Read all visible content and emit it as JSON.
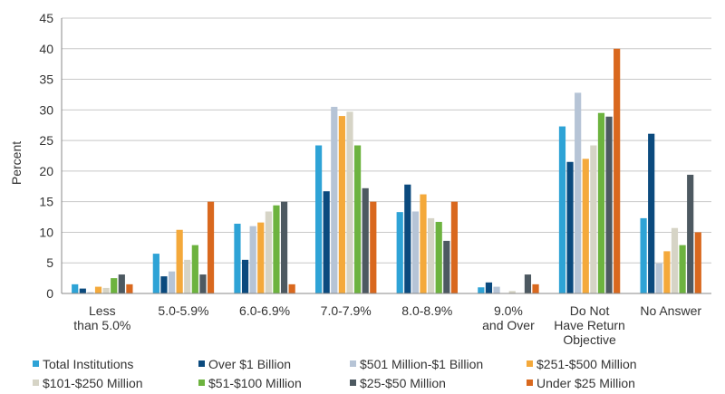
{
  "chart_data": {
    "type": "bar",
    "ylabel": "Percent",
    "ylim": [
      0,
      45
    ],
    "yticks": [
      0,
      5,
      10,
      15,
      20,
      25,
      30,
      35,
      40,
      45
    ],
    "grid": true,
    "legend_position": "bottom",
    "categories": [
      [
        "Less",
        "than 5.0%"
      ],
      [
        "5.0-5.9%"
      ],
      [
        "6.0-6.9%"
      ],
      [
        "7.0-7.9%"
      ],
      [
        "8.0-8.9%"
      ],
      [
        "9.0%",
        "and Over"
      ],
      [
        "Do Not",
        "Have Return",
        "Objective"
      ],
      [
        "No Answer"
      ]
    ],
    "series": [
      {
        "name": "Total Institutions",
        "color": "#2ea3d6",
        "values": [
          1.5,
          6.5,
          11.4,
          24.2,
          13.3,
          1.0,
          27.3,
          12.3
        ]
      },
      {
        "name": "Over $1 Billion",
        "color": "#0b4a7e",
        "values": [
          0.8,
          2.8,
          5.5,
          16.7,
          17.8,
          1.8,
          21.5,
          26.1
        ]
      },
      {
        "name": "$501 Million-$1 Billion",
        "color": "#b6c4d6",
        "values": [
          0.2,
          3.6,
          11.0,
          30.5,
          13.4,
          1.1,
          32.8,
          4.9
        ]
      },
      {
        "name": "$251-$500 Million",
        "color": "#f4a93b",
        "values": [
          1.1,
          10.4,
          11.6,
          29.0,
          16.2,
          0.0,
          22.0,
          6.9
        ]
      },
      {
        "name": "$101-$250 Million",
        "color": "#d6d4c6",
        "values": [
          0.9,
          5.5,
          13.4,
          29.7,
          12.3,
          0.4,
          24.2,
          10.7
        ]
      },
      {
        "name": "$51-$100 Million",
        "color": "#6db33f",
        "values": [
          2.5,
          7.9,
          14.4,
          24.2,
          11.7,
          0.0,
          29.5,
          7.9
        ]
      },
      {
        "name": "$25-$50 Million",
        "color": "#4d5961",
        "values": [
          3.1,
          3.1,
          15.0,
          17.2,
          8.6,
          3.1,
          28.9,
          19.4
        ]
      },
      {
        "name": "Under $25 Million",
        "color": "#d9681e",
        "values": [
          1.5,
          15.0,
          1.5,
          15.0,
          15.0,
          1.5,
          40.0,
          10.0
        ]
      }
    ]
  }
}
